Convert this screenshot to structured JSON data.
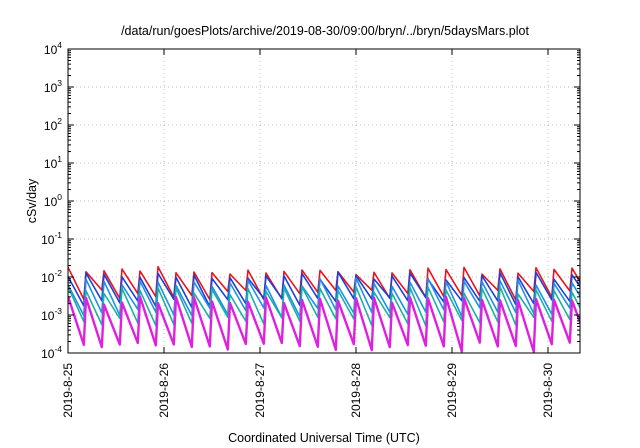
{
  "chart_data": {
    "type": "line",
    "title": "/data/run/goesPlots/archive/2019-08-30/09:00/bryn/../bryn/5daysMars.plot",
    "xlabel": "Coordinated Universal Time (UTC)",
    "ylabel": "cSv/day",
    "x_range": [
      "2019-08-25",
      "2019-08-30 10:00"
    ],
    "x_ticks": [
      "2019-8-25",
      "2019-8-26",
      "2019-8-27",
      "2019-8-28",
      "2019-8-29",
      "2019-8-30"
    ],
    "y_scale": "log",
    "ylim": [
      0.0001,
      10000
    ],
    "y_ticks": [
      {
        "base": "10",
        "exp": "-4"
      },
      {
        "base": "10",
        "exp": "-3"
      },
      {
        "base": "10",
        "exp": "-2"
      },
      {
        "base": "10",
        "exp": "-1"
      },
      {
        "base": "10",
        "exp": "0"
      },
      {
        "base": "10",
        "exp": "1"
      },
      {
        "base": "10",
        "exp": "2"
      },
      {
        "base": "10",
        "exp": "3"
      },
      {
        "base": "10",
        "exp": "4"
      }
    ],
    "grid": true,
    "legend": "none",
    "series": [
      {
        "color": "#e8141e",
        "low": 0.0035,
        "high": 0.015
      },
      {
        "color": "#1f3fd8",
        "low": 0.0022,
        "high": 0.011
      },
      {
        "color": "#1f8fe8",
        "low": 0.0012,
        "high": 0.0075
      },
      {
        "color": "#1fb0a0",
        "low": 0.0007,
        "high": 0.0045
      },
      {
        "color": "#e020e0",
        "low": 0.00015,
        "high": 0.0025
      }
    ],
    "cycle_hours": 4.5,
    "colors": {
      "axis": "#000000",
      "grid": "#bbbbbb",
      "background": "#ffffff"
    }
  }
}
